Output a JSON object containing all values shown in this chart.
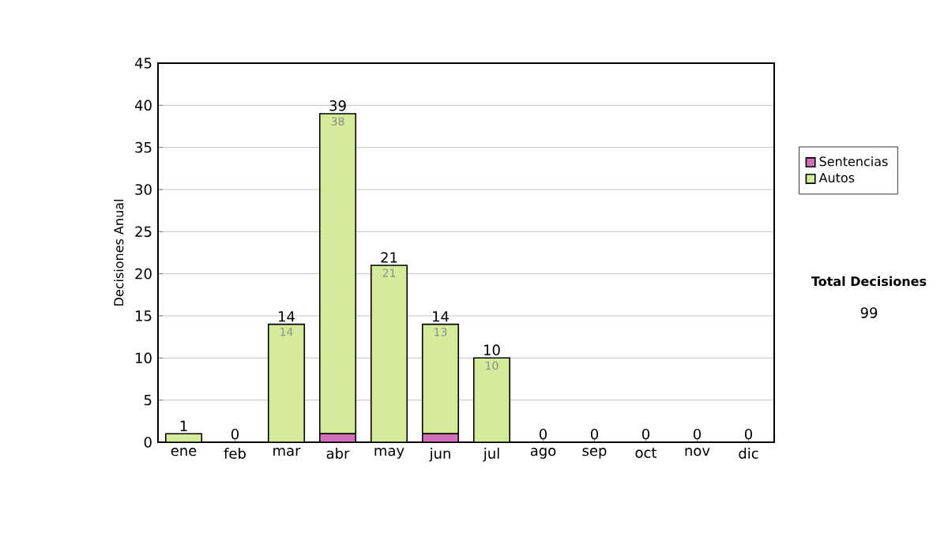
{
  "chart_data": {
    "type": "bar",
    "stacked": true,
    "ylabel": "Decisiones Anual",
    "categories": [
      "ene",
      "feb",
      "mar",
      "abr",
      "may",
      "jun",
      "jul",
      "ago",
      "sep",
      "oct",
      "nov",
      "dic"
    ],
    "series": [
      {
        "name": "Sentencias",
        "color": "#d070b8",
        "values": [
          0,
          0,
          0,
          1,
          0,
          1,
          0,
          0,
          0,
          0,
          0,
          0
        ]
      },
      {
        "name": "Autos",
        "color": "#d4ec9a",
        "values": [
          1,
          0,
          14,
          38,
          21,
          13,
          10,
          0,
          0,
          0,
          0,
          0
        ],
        "value_labels": [
          null,
          null,
          "14",
          "38",
          "21",
          "13",
          "10",
          null,
          null,
          null,
          null,
          null
        ]
      }
    ],
    "totals": [
      "1",
      "0",
      "14",
      "39",
      "21",
      "14",
      "10",
      "0",
      "0",
      "0",
      "0",
      "0"
    ],
    "ylim": [
      0,
      45
    ],
    "yticks": [
      0,
      5,
      10,
      15,
      20,
      25,
      30,
      35,
      40,
      45
    ],
    "grid": "y",
    "legend": "right",
    "annotations": [
      "Total Decisiones",
      "99"
    ]
  }
}
